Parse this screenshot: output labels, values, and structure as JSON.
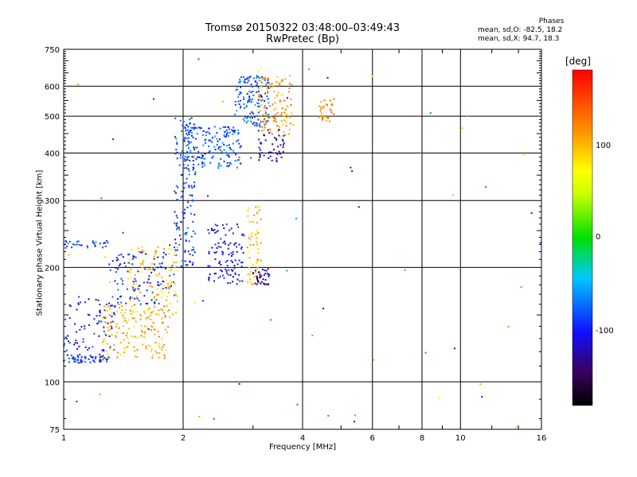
{
  "header": {
    "line1": "Tromsø 20150322 03:48:00–03:49:43",
    "line2": "RwPretec (Bp)"
  },
  "phases_box": {
    "title": "Phases",
    "line_o": "mean, sd,O: -82.5, 18.2",
    "line_x": "mean, sd,X:  94.7, 18.3"
  },
  "colorbar": {
    "label": "[deg]",
    "ticks": [
      "100",
      "0",
      "-100"
    ],
    "tick_values": [
      100,
      0,
      -100
    ],
    "range": [
      -180,
      180
    ]
  },
  "chart_data": {
    "type": "scatter",
    "xlabel": "Frequency [MHz]",
    "ylabel": "Stationary phase Virtual Height [km]",
    "x_scale": "log",
    "y_scale": "log",
    "xlim": [
      1,
      16
    ],
    "ylim": [
      75,
      750
    ],
    "x_ticks": [
      "1",
      "2",
      "4",
      "6",
      "8",
      "10",
      "16"
    ],
    "x_tick_values": [
      1,
      2,
      4,
      6,
      8,
      10,
      16
    ],
    "y_ticks": [
      "75",
      "100",
      "200",
      "300",
      "400",
      "500",
      "600",
      "750"
    ],
    "y_tick_values": [
      75,
      100,
      200,
      300,
      400,
      500,
      600,
      750
    ],
    "grid": true,
    "traces": [
      {
        "name": "",
        "f_range": [
          1.0,
          1.3
        ],
        "h_range": [
          112,
          118
        ],
        "phase": -95,
        "density": 60
      },
      {
        "name": "",
        "f_range": [
          1.0,
          1.35
        ],
        "h_range": [
          120,
          170
        ],
        "phase": -100,
        "density": 80
      },
      {
        "name": "",
        "f_range": [
          1.25,
          1.85
        ],
        "h_range": [
          115,
          160
        ],
        "phase": 105,
        "density": 160
      },
      {
        "name": "",
        "f_range": [
          1.45,
          1.95
        ],
        "h_range": [
          150,
          230
        ],
        "phase": 95,
        "density": 120
      },
      {
        "name": "",
        "f_range": [
          1.3,
          1.9
        ],
        "h_range": [
          160,
          220
        ],
        "phase": -90,
        "density": 110
      },
      {
        "name": "",
        "f_range": [
          1.9,
          2.15
        ],
        "h_range": [
          200,
          500
        ],
        "phase": -85,
        "density": 150
      },
      {
        "name": "",
        "f_range": [
          2.0,
          2.8
        ],
        "h_range": [
          365,
          470
        ],
        "phase": -80,
        "density": 170
      },
      {
        "name": "",
        "f_range": [
          2.7,
          3.3
        ],
        "h_range": [
          470,
          640
        ],
        "phase": -75,
        "density": 140
      },
      {
        "name": "",
        "f_range": [
          3.1,
          3.8
        ],
        "h_range": [
          440,
          640
        ],
        "phase": 110,
        "density": 120
      },
      {
        "name": "",
        "f_range": [
          3.05,
          3.6
        ],
        "h_range": [
          380,
          460
        ],
        "phase": -125,
        "density": 50
      },
      {
        "name": "",
        "f_range": [
          2.3,
          2.85
        ],
        "h_range": [
          180,
          260
        ],
        "phase": -105,
        "density": 110
      },
      {
        "name": "",
        "f_range": [
          2.9,
          3.15
        ],
        "h_range": [
          180,
          290
        ],
        "phase": 100,
        "density": 60
      },
      {
        "name": "",
        "f_range": [
          3.0,
          3.3
        ],
        "h_range": [
          180,
          200
        ],
        "phase": -130,
        "density": 40
      },
      {
        "name": "",
        "f_range": [
          4.4,
          4.8
        ],
        "h_range": [
          480,
          560
        ],
        "phase": 120,
        "density": 30
      },
      {
        "name": "",
        "f_range": [
          1.0,
          1.3
        ],
        "h_range": [
          225,
          235
        ],
        "phase": -80,
        "density": 30
      }
    ]
  }
}
